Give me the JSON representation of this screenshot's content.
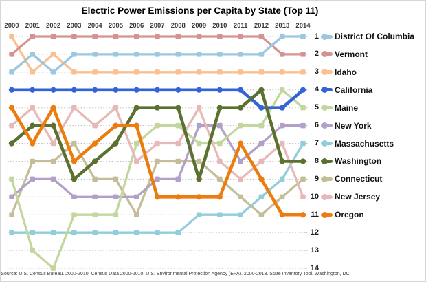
{
  "source_note": "Source: U.S. Census Bureau. 2000-2010. Census Data 2000-2010; U.S. Environmental Protection Agency (EPA). 2000-2013. State Inventory Tool. Washington, DC",
  "chart_data": {
    "type": "line",
    "subtype": "bump-rank-chart",
    "title": "Electric Power Emissions per Capita by State (Top 11)",
    "x_labels": [
      "2000",
      "2001",
      "2002",
      "2003",
      "2004",
      "2005",
      "2006",
      "2007",
      "2008",
      "2009",
      "2010",
      "2011",
      "2012",
      "2013",
      "2014"
    ],
    "y_axis": {
      "label": "rank",
      "min": 1,
      "max": 14,
      "inverted": true,
      "tick_labels": [
        "1",
        "2",
        "3",
        "4",
        "5",
        "6",
        "7",
        "8",
        "9",
        "10",
        "11",
        "12",
        "13",
        "14"
      ]
    },
    "grid": "horizontal-dotted",
    "legend_position": "right-aligned-to-final-rank",
    "series": [
      {
        "name": "District Of Columbia",
        "color": "#9CC7E0",
        "style": "light",
        "marker": "square",
        "ranks": [
          3,
          2,
          3,
          2,
          2,
          2,
          2,
          2,
          2,
          2,
          2,
          2,
          2,
          1,
          1
        ]
      },
      {
        "name": "Vermont",
        "color": "#D49391",
        "style": "light",
        "marker": "square",
        "ranks": [
          2,
          1,
          1,
          1,
          1,
          1,
          1,
          1,
          1,
          1,
          1,
          1,
          1,
          2,
          2
        ]
      },
      {
        "name": "Idaho",
        "color": "#FAC090",
        "style": "light",
        "marker": "square",
        "ranks": [
          1,
          3,
          2,
          3,
          3,
          3,
          3,
          3,
          3,
          3,
          3,
          3,
          3,
          3,
          3
        ]
      },
      {
        "name": "California",
        "color": "#3363D6",
        "style": "bold",
        "marker": "circle",
        "ranks": [
          4,
          4,
          4,
          4,
          4,
          4,
          4,
          4,
          4,
          4,
          4,
          4,
          5,
          5,
          4
        ]
      },
      {
        "name": "Maine",
        "color": "#C3D69B",
        "style": "light",
        "marker": "square",
        "ranks": [
          9,
          13,
          14,
          11,
          11,
          11,
          7,
          6,
          6,
          7,
          7,
          6,
          6,
          4,
          5
        ]
      },
      {
        "name": "New York",
        "color": "#B1A0C7",
        "style": "light",
        "marker": "square",
        "ranks": [
          10,
          9,
          9,
          10,
          10,
          10,
          10,
          9,
          9,
          6,
          6,
          8,
          7,
          6,
          6
        ]
      },
      {
        "name": "Massachusetts",
        "color": "#92CDDC",
        "style": "light",
        "marker": "square",
        "ranks": [
          12,
          12,
          12,
          12,
          12,
          12,
          12,
          12,
          12,
          11,
          11,
          11,
          10,
          9,
          7
        ]
      },
      {
        "name": "Washington",
        "color": "#5C7030",
        "style": "bold",
        "marker": "circle",
        "ranks": [
          7,
          6,
          6,
          9,
          8,
          7,
          5,
          5,
          5,
          9,
          5,
          5,
          4,
          8,
          8
        ]
      },
      {
        "name": "Connecticut",
        "color": "#C4BD97",
        "style": "light",
        "marker": "square",
        "ranks": [
          11,
          8,
          8,
          7,
          9,
          9,
          11,
          8,
          8,
          8,
          9,
          10,
          11,
          10,
          9
        ]
      },
      {
        "name": "New Jersey",
        "color": "#E6B9B8",
        "style": "light",
        "marker": "square",
        "ranks": [
          6,
          5,
          7,
          5,
          6,
          5,
          8,
          7,
          7,
          5,
          8,
          9,
          8,
          7,
          10
        ]
      },
      {
        "name": "Oregon",
        "color": "#EC7C0D",
        "style": "bold",
        "marker": "circle",
        "ranks": [
          5,
          7,
          5,
          8,
          7,
          6,
          6,
          10,
          10,
          10,
          10,
          7,
          9,
          11,
          11
        ]
      }
    ],
    "legend": [
      {
        "rank": 1,
        "label": "District Of Columbia"
      },
      {
        "rank": 2,
        "label": "Vermont"
      },
      {
        "rank": 3,
        "label": "Idaho"
      },
      {
        "rank": 4,
        "label": "California"
      },
      {
        "rank": 5,
        "label": "Maine"
      },
      {
        "rank": 6,
        "label": "New York"
      },
      {
        "rank": 7,
        "label": "Massachusetts"
      },
      {
        "rank": 8,
        "label": "Washington"
      },
      {
        "rank": 9,
        "label": "Connecticut"
      },
      {
        "rank": 10,
        "label": "New Jersey"
      },
      {
        "rank": 11,
        "label": "Oregon"
      }
    ]
  }
}
